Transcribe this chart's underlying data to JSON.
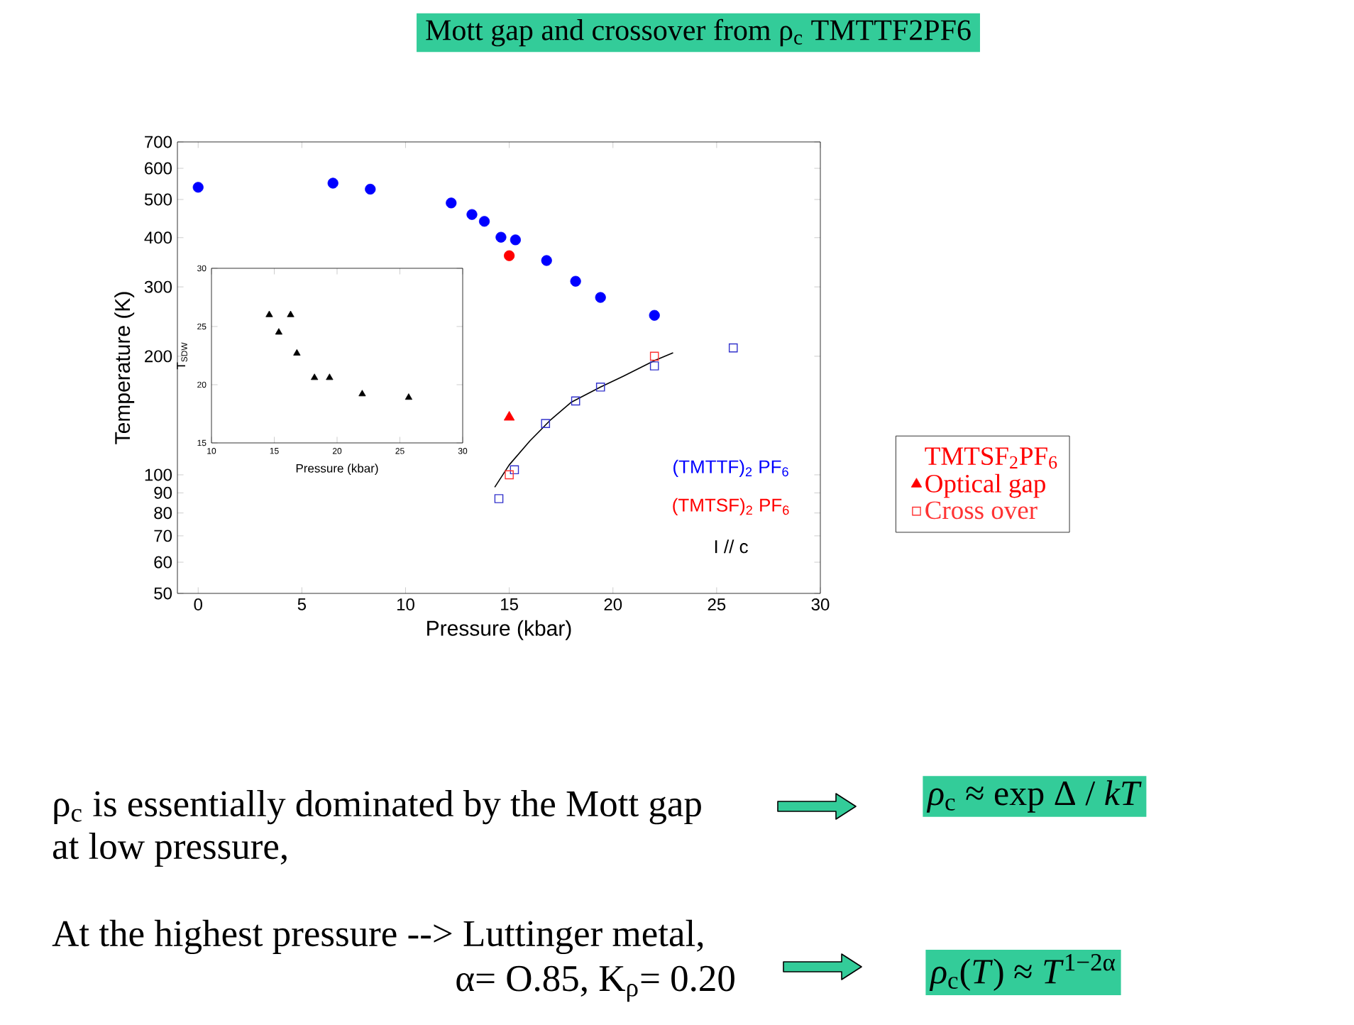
{
  "chart_data": [
    {
      "type": "scatter",
      "title": "Mott gap and crossover from ρ$_{c}$ TMTTF2PF6",
      "xlabel": "Pressure (kbar)",
      "ylabel": "Temperature (K)",
      "xlim": [
        -1,
        30
      ],
      "xticks": [
        0,
        5,
        10,
        15,
        20,
        25,
        30
      ],
      "ylim": [
        50,
        700
      ],
      "yticks": [
        50,
        60,
        70,
        80,
        90,
        100,
        200,
        300,
        400,
        500,
        600,
        700
      ],
      "log": "y",
      "legend": "right",
      "legend_title": "TMTSF$_{2}$PF$_{6}$",
      "series": [
        {
          "color": "#0000ff",
          "marker": "circle",
          "x": [
            0,
            6.5,
            8.3,
            12.2,
            13.2,
            13.8,
            14.6,
            15.3,
            16.8,
            18.2,
            19.4,
            22
          ],
          "values": [
            537,
            550,
            531,
            490,
            458,
            440,
            401,
            395,
            350,
            310,
            282,
            254
          ]
        },
        {
          "color": "#ff0000",
          "marker": "circle",
          "x": [
            15
          ],
          "values": [
            360
          ]
        },
        {
          "color": "#3333cc",
          "marker": "square",
          "x": [
            14.5,
            15.25,
            16.75,
            18.2,
            19.4,
            22,
            25.8
          ],
          "values": [
            87,
            103,
            135,
            154,
            167,
            189,
            210
          ]
        },
        {
          "name": "Optical gap",
          "color": "#ff0000",
          "marker": "triangle",
          "x": [
            15
          ],
          "values": [
            140
          ]
        },
        {
          "name": "Cross over",
          "color": "#ff3333",
          "marker": "square",
          "x": [
            15,
            22
          ],
          "values": [
            100,
            200
          ]
        },
        {
          "type": "line",
          "color": "#000000",
          "marker": "none",
          "x": [
            14.3,
            15,
            16,
            17,
            18,
            19.4,
            20.5,
            22,
            22.9
          ],
          "values": [
            93,
            106,
            122,
            138,
            153,
            167,
            178,
            195,
            204
          ]
        }
      ],
      "annotations": [
        "(TMTTF)$_{2}$ PF$_{6}$",
        "(TMTSF)$_{2}$ PF$_{6}$",
        "I // c",
        "ρ$_{c}$ is essentially dominated by the Mott gap at low pressure,",
        "At the highest pressure --> Luttinger metal,",
        "α= O.85, K$_{ρ}$= 0.20",
        "*ρ*$_{c}$ ≈ exp Δ / *kT*",
        "*ρ*$_{c}$(*T*) ≈ *T*$^{1−2α}$"
      ]
    },
    {
      "type": "scatter",
      "xlabel": "Pressure (kbar)",
      "ylabel": "T$_{SDW}$",
      "xlim": [
        10,
        30
      ],
      "xticks": [
        10,
        15,
        20,
        25,
        30
      ],
      "ylim": [
        15,
        30
      ],
      "yticks": [
        15,
        20,
        25,
        30
      ],
      "marker": "triangle",
      "color": "#000000",
      "x": [
        14.6,
        15.36,
        16.3,
        16.8,
        18.2,
        19.4,
        22.0,
        25.7
      ],
      "values": [
        26.0,
        24.5,
        26.0,
        22.7,
        20.6,
        20.6,
        19.2,
        18.9
      ]
    }
  ]
}
